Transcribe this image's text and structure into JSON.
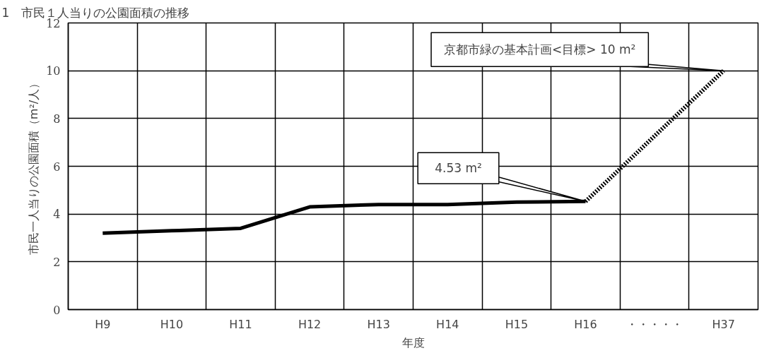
{
  "chart_data": {
    "type": "line",
    "title": "1　市民１人当りの公園面積の推移",
    "xlabel": "年度",
    "ylabel": "市民一人当りの公園面積（m²/人）",
    "categories": [
      "H9",
      "H10",
      "H11",
      "H12",
      "H13",
      "H14",
      "H15",
      "H16",
      "・・・・・",
      "H37"
    ],
    "series": [
      {
        "color": "#000000",
        "line_style": "solid",
        "values": [
          3.2,
          3.3,
          3.4,
          4.3,
          4.4,
          4.4,
          4.5,
          4.53,
          null,
          null
        ]
      },
      {
        "color": "#000000",
        "line_style": "dotted",
        "values": [
          null,
          null,
          null,
          null,
          null,
          null,
          null,
          4.53,
          null,
          10
        ]
      }
    ],
    "ylim": [
      0,
      12
    ],
    "yticks": [
      0,
      2,
      4,
      6,
      8,
      10,
      12
    ],
    "grid": true,
    "annotations": [
      {
        "text": "4.53 m²",
        "x": "H16",
        "y": 4.53
      },
      {
        "text": "京都市緑の基本計画<目標> 10 m²",
        "x": "H37",
        "y": 10
      }
    ]
  }
}
